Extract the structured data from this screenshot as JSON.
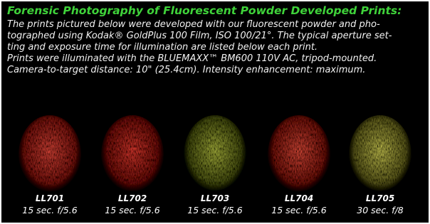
{
  "header": {
    "title": "Forensic Photography of Fluorescent Powder Developed Prints:"
  },
  "body": {
    "lines": [
      "The prints pictured below were developed with our fluorescent powder and pho-",
      "tographed using Kodak® GoldPlus 100 Film, ISO 100/21°. The typical aperture set-",
      "ting and exposure time for illumination are listed below each print.",
      "Prints were illuminated with the BLUEMAXX™ BM600 110V AC, tripod-mounted.",
      "Camera-to-target distance: 10\" (25.4cm). Intensity enhancement: maximum."
    ]
  },
  "prints": [
    {
      "id": "LL701",
      "exposure": "15 sec. f/5.6"
    },
    {
      "id": "LL702",
      "exposure": "15 sec. f/5.6"
    },
    {
      "id": "LL703",
      "exposure": "15 sec. f/5.6"
    },
    {
      "id": "LL704",
      "exposure": "15 sec. f/5.6"
    },
    {
      "id": "LL705",
      "exposure": "30 sec. f/8"
    }
  ]
}
